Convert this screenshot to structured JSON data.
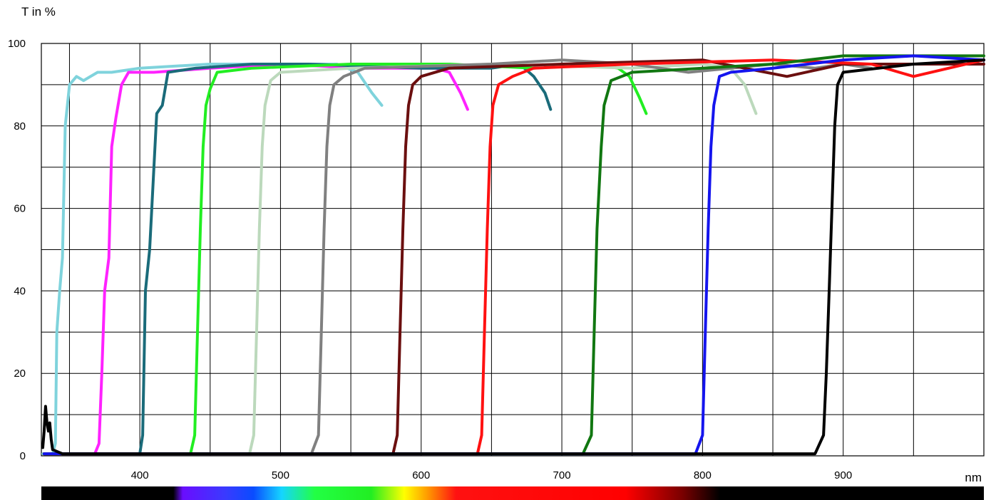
{
  "chart_data": {
    "type": "line",
    "ylabel": "T in %",
    "xlabel": "nm",
    "xlim": [
      330,
      1000
    ],
    "ylim": [
      0,
      100
    ],
    "x_tick_labels": [
      "400",
      "500",
      "600",
      "700",
      "800",
      "900"
    ],
    "x_ticks": [
      400,
      500,
      600,
      700,
      800,
      900
    ],
    "y_tick_labels": [
      "0",
      "20",
      "40",
      "60",
      "80",
      "100"
    ],
    "y_ticks": [
      0,
      20,
      40,
      60,
      80,
      100
    ],
    "grid": true,
    "x_grid_step": 50,
    "y_grid_step": 10,
    "spectrum_bar": true,
    "series": [
      {
        "color": "#7fd3dc",
        "points": [
          [
            331,
            0.5
          ],
          [
            338,
            0.5
          ],
          [
            340,
            3
          ],
          [
            341,
            30
          ],
          [
            343,
            40
          ],
          [
            345,
            48
          ],
          [
            347,
            80
          ],
          [
            350,
            90
          ],
          [
            355,
            92
          ],
          [
            360,
            91
          ],
          [
            370,
            93
          ],
          [
            380,
            93
          ],
          [
            400,
            94
          ],
          [
            450,
            95
          ],
          [
            500,
            95
          ],
          [
            540,
            95
          ],
          [
            555,
            93
          ],
          [
            565,
            88
          ],
          [
            572,
            85
          ]
        ]
      },
      {
        "color": "#ff22ff",
        "points": [
          [
            332,
            0.5
          ],
          [
            368,
            0.5
          ],
          [
            371,
            3
          ],
          [
            373,
            20
          ],
          [
            375,
            40
          ],
          [
            378,
            48
          ],
          [
            380,
            75
          ],
          [
            383,
            82
          ],
          [
            387,
            90
          ],
          [
            392,
            93
          ],
          [
            410,
            93
          ],
          [
            450,
            94
          ],
          [
            500,
            95
          ],
          [
            560,
            94
          ],
          [
            610,
            94
          ],
          [
            620,
            93
          ],
          [
            628,
            88
          ],
          [
            633,
            84
          ]
        ]
      },
      {
        "color": "#1a6b7a",
        "points": [
          [
            332,
            0.5
          ],
          [
            400,
            0.5
          ],
          [
            402,
            5
          ],
          [
            404,
            40
          ],
          [
            407,
            50
          ],
          [
            410,
            70
          ],
          [
            412,
            83
          ],
          [
            416,
            85
          ],
          [
            420,
            93
          ],
          [
            440,
            94
          ],
          [
            480,
            95
          ],
          [
            520,
            95
          ],
          [
            600,
            94
          ],
          [
            650,
            94
          ],
          [
            670,
            95
          ],
          [
            680,
            92
          ],
          [
            688,
            88
          ],
          [
            692,
            84
          ]
        ]
      },
      {
        "color": "#22ee22",
        "points": [
          [
            332,
            0.5
          ],
          [
            436,
            0.5
          ],
          [
            439,
            5
          ],
          [
            441,
            30
          ],
          [
            443,
            55
          ],
          [
            445,
            75
          ],
          [
            447,
            85
          ],
          [
            450,
            89
          ],
          [
            455,
            93
          ],
          [
            480,
            94
          ],
          [
            550,
            95
          ],
          [
            620,
            95
          ],
          [
            680,
            94
          ],
          [
            720,
            95
          ],
          [
            740,
            94
          ],
          [
            748,
            92
          ],
          [
            755,
            87
          ],
          [
            760,
            83
          ]
        ]
      },
      {
        "color": "#bcd9bc",
        "points": [
          [
            332,
            0.5
          ],
          [
            478,
            0.5
          ],
          [
            481,
            5
          ],
          [
            483,
            30
          ],
          [
            485,
            55
          ],
          [
            487,
            75
          ],
          [
            489,
            85
          ],
          [
            493,
            91
          ],
          [
            500,
            93
          ],
          [
            550,
            94
          ],
          [
            650,
            95
          ],
          [
            750,
            94
          ],
          [
            800,
            95
          ],
          [
            820,
            94
          ],
          [
            830,
            90
          ],
          [
            838,
            83
          ]
        ]
      },
      {
        "color": "#808080",
        "points": [
          [
            332,
            0.5
          ],
          [
            522,
            0.5
          ],
          [
            527,
            5
          ],
          [
            529,
            30
          ],
          [
            531,
            55
          ],
          [
            533,
            75
          ],
          [
            535,
            85
          ],
          [
            538,
            90
          ],
          [
            545,
            92
          ],
          [
            560,
            94
          ],
          [
            650,
            95
          ],
          [
            700,
            96
          ],
          [
            750,
            95
          ],
          [
            790,
            93
          ],
          [
            820,
            94
          ],
          [
            850,
            95
          ],
          [
            880,
            94
          ],
          [
            900,
            95
          ],
          [
            920,
            94
          ]
        ]
      },
      {
        "color": "#6b0f0f",
        "points": [
          [
            332,
            0.5
          ],
          [
            580,
            0.5
          ],
          [
            583,
            5
          ],
          [
            585,
            30
          ],
          [
            587,
            55
          ],
          [
            589,
            75
          ],
          [
            591,
            85
          ],
          [
            594,
            90
          ],
          [
            600,
            92
          ],
          [
            620,
            94
          ],
          [
            700,
            95
          ],
          [
            800,
            96
          ],
          [
            860,
            92
          ],
          [
            900,
            95
          ],
          [
            1000,
            95
          ]
        ]
      },
      {
        "color": "#ff1111",
        "points": [
          [
            332,
            0.5
          ],
          [
            640,
            0.5
          ],
          [
            643,
            5
          ],
          [
            645,
            30
          ],
          [
            647,
            55
          ],
          [
            649,
            75
          ],
          [
            651,
            85
          ],
          [
            655,
            90
          ],
          [
            665,
            92
          ],
          [
            680,
            94
          ],
          [
            750,
            95
          ],
          [
            850,
            96
          ],
          [
            920,
            95
          ],
          [
            950,
            92
          ],
          [
            1000,
            96
          ]
        ]
      },
      {
        "color": "#117711",
        "points": [
          [
            332,
            0.5
          ],
          [
            715,
            0.5
          ],
          [
            721,
            5
          ],
          [
            723,
            30
          ],
          [
            725,
            55
          ],
          [
            728,
            75
          ],
          [
            730,
            85
          ],
          [
            735,
            91
          ],
          [
            750,
            93
          ],
          [
            800,
            94
          ],
          [
            850,
            95
          ],
          [
            900,
            97
          ],
          [
            950,
            97
          ],
          [
            1000,
            97
          ]
        ]
      },
      {
        "color": "#1515ee",
        "points": [
          [
            332,
            0.5
          ],
          [
            795,
            0.5
          ],
          [
            800,
            5
          ],
          [
            802,
            30
          ],
          [
            804,
            55
          ],
          [
            806,
            75
          ],
          [
            808,
            85
          ],
          [
            812,
            92
          ],
          [
            820,
            93
          ],
          [
            850,
            94
          ],
          [
            900,
            96
          ],
          [
            950,
            97
          ],
          [
            1000,
            96
          ]
        ]
      },
      {
        "color": "#000000",
        "points": [
          [
            331,
            2
          ],
          [
            332,
            6
          ],
          [
            333,
            12
          ],
          [
            334,
            8
          ],
          [
            335,
            6
          ],
          [
            336,
            8
          ],
          [
            337,
            4
          ],
          [
            338,
            1.5
          ],
          [
            345,
            0.5
          ],
          [
            880,
            0.5
          ],
          [
            886,
            5
          ],
          [
            888,
            20
          ],
          [
            890,
            40
          ],
          [
            892,
            60
          ],
          [
            894,
            80
          ],
          [
            896,
            90
          ],
          [
            900,
            93
          ],
          [
            950,
            95
          ],
          [
            1000,
            96
          ]
        ]
      }
    ]
  }
}
